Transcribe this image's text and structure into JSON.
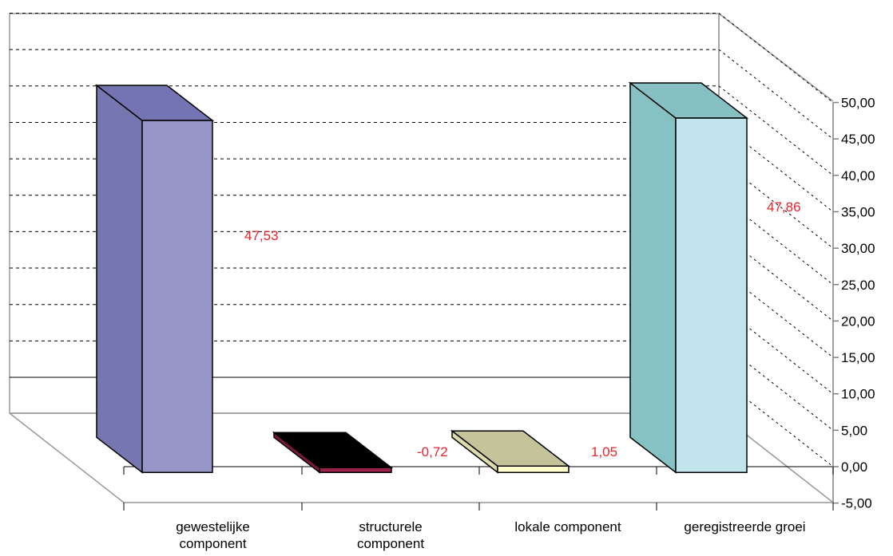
{
  "chart_data": {
    "type": "bar",
    "style": "3d-column",
    "title": "",
    "xlabel": "",
    "ylabel": "",
    "categories": [
      [
        "gewestelijke",
        "component"
      ],
      [
        "structurele",
        "component"
      ],
      [
        "lokale component"
      ],
      [
        "geregistreerde groei"
      ]
    ],
    "values": [
      47.53,
      -0.72,
      1.05,
      47.86
    ],
    "data_labels": [
      "47,53",
      "-0,72",
      "1,05",
      "47,86"
    ],
    "ylim": [
      -5,
      50
    ],
    "y_ticks": [
      -5,
      0,
      5,
      10,
      15,
      20,
      25,
      30,
      35,
      40,
      45,
      50
    ],
    "y_tick_labels": [
      "-5,00",
      "0,00",
      "5,00",
      "10,00",
      "15,00",
      "20,00",
      "25,00",
      "30,00",
      "35,00",
      "40,00",
      "45,00",
      "50,00"
    ],
    "grid": true,
    "legend": "none",
    "colors": [
      {
        "front": "#9696c8",
        "side": "#7676b0",
        "top": "#7474b2"
      },
      {
        "front": "#99204a",
        "side": "#7a1838",
        "top": "#000000"
      },
      {
        "front": "#ffffcc",
        "side": "#dcdcaa",
        "top": "#c4c39a"
      },
      {
        "front": "#c2e4ec",
        "side": "#86c2c4",
        "top": "#86c0c2"
      }
    ],
    "label_color": "#e8242c"
  }
}
